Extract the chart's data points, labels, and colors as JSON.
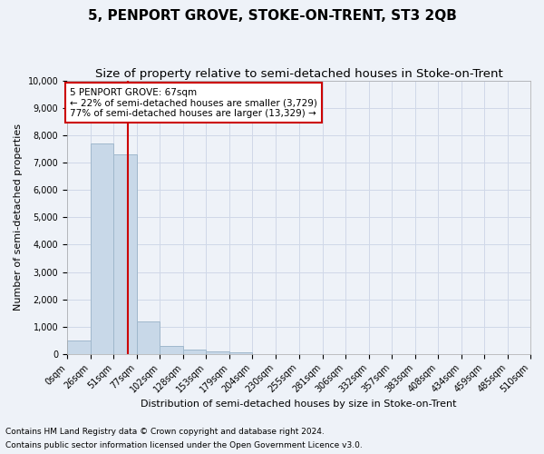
{
  "title": "5, PENPORT GROVE, STOKE-ON-TRENT, ST3 2QB",
  "subtitle": "Size of property relative to semi-detached houses in Stoke-on-Trent",
  "xlabel": "Distribution of semi-detached houses by size in Stoke-on-Trent",
  "ylabel": "Number of semi-detached properties",
  "footnote1": "Contains HM Land Registry data © Crown copyright and database right 2024.",
  "footnote2": "Contains public sector information licensed under the Open Government Licence v3.0.",
  "annotation_title": "5 PENPORT GROVE: 67sqm",
  "annotation_line1": "← 22% of semi-detached houses are smaller (3,729)",
  "annotation_line2": "77% of semi-detached houses are larger (13,329) →",
  "property_size_sqm": 67,
  "bar_edges": [
    0,
    26,
    51,
    77,
    102,
    128,
    153,
    179,
    204,
    230,
    255,
    281,
    306,
    332,
    357,
    383,
    408,
    434,
    459,
    485,
    510
  ],
  "bar_heights": [
    500,
    7700,
    7300,
    1200,
    300,
    150,
    100,
    60,
    0,
    0,
    0,
    0,
    0,
    0,
    0,
    0,
    0,
    0,
    0,
    0
  ],
  "bar_color": "#c8d8e8",
  "bar_edgecolor": "#a0b8cc",
  "vline_color": "#cc0000",
  "vline_x": 67,
  "annotation_box_edgecolor": "#cc0000",
  "annotation_box_facecolor": "#ffffff",
  "ylim": [
    0,
    10000
  ],
  "yticks": [
    0,
    1000,
    2000,
    3000,
    4000,
    5000,
    6000,
    7000,
    8000,
    9000,
    10000
  ],
  "grid_color": "#d0d8e8",
  "background_color": "#eef2f8",
  "title_fontsize": 11,
  "subtitle_fontsize": 9.5,
  "axis_label_fontsize": 8,
  "tick_fontsize": 7,
  "annotation_fontsize": 7.5,
  "footnote_fontsize": 6.5
}
